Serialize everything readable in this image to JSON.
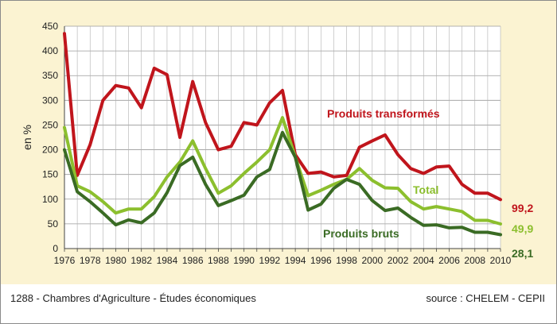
{
  "footer": {
    "left_text": "1288 - Chambres d'Agriculture - Études économiques",
    "right_text": "source : CHELEM - CEPII"
  },
  "chart_data": {
    "type": "line",
    "title": "",
    "xlabel": "",
    "ylabel": "en %",
    "xlim": [
      1976,
      2010
    ],
    "ylim": [
      0,
      450
    ],
    "grid": true,
    "legend": "inline labels",
    "x": [
      1976,
      1977,
      1978,
      1979,
      1980,
      1981,
      1982,
      1983,
      1984,
      1985,
      1986,
      1987,
      1988,
      1989,
      1990,
      1991,
      1992,
      1993,
      1994,
      1995,
      1996,
      1997,
      1998,
      1999,
      2000,
      2001,
      2002,
      2003,
      2004,
      2005,
      2006,
      2007,
      2008,
      2009,
      2010
    ],
    "x_tick_labels": [
      "1976",
      "1978",
      "1980",
      "1982",
      "1984",
      "1986",
      "1988",
      "1990",
      "1992",
      "1994",
      "1996",
      "1998",
      "2000",
      "2002",
      "2004",
      "2006",
      "2008",
      "2010"
    ],
    "y_tick_labels": [
      "0",
      "50",
      "100",
      "150",
      "200",
      "250",
      "300",
      "350",
      "400",
      "450"
    ],
    "series": [
      {
        "name": "Produits transformés",
        "color": "#c0151c",
        "end_label": "99,2",
        "values": [
          435,
          148,
          210,
          300,
          330,
          325,
          285,
          365,
          352,
          225,
          338,
          255,
          200,
          207,
          255,
          250,
          295,
          320,
          190,
          152,
          155,
          145,
          148,
          205,
          218,
          230,
          190,
          162,
          152,
          165,
          167,
          130,
          112,
          112,
          99.2
        ]
      },
      {
        "name": "Total",
        "color": "#8cbf2e",
        "end_label": "49,9",
        "values": [
          245,
          127,
          115,
          95,
          72,
          80,
          80,
          105,
          145,
          175,
          218,
          162,
          112,
          127,
          152,
          175,
          200,
          265,
          185,
          107,
          118,
          130,
          140,
          162,
          138,
          123,
          122,
          95,
          80,
          85,
          80,
          75,
          57,
          57,
          49.9
        ]
      },
      {
        "name": "Produits bruts",
        "color": "#3a6b24",
        "end_label": "28,1",
        "values": [
          200,
          115,
          95,
          72,
          48,
          58,
          52,
          72,
          113,
          168,
          185,
          130,
          87,
          97,
          108,
          145,
          160,
          235,
          185,
          78,
          90,
          122,
          140,
          130,
          97,
          77,
          82,
          63,
          47,
          48,
          42,
          43,
          33,
          33,
          28.1
        ]
      }
    ]
  }
}
